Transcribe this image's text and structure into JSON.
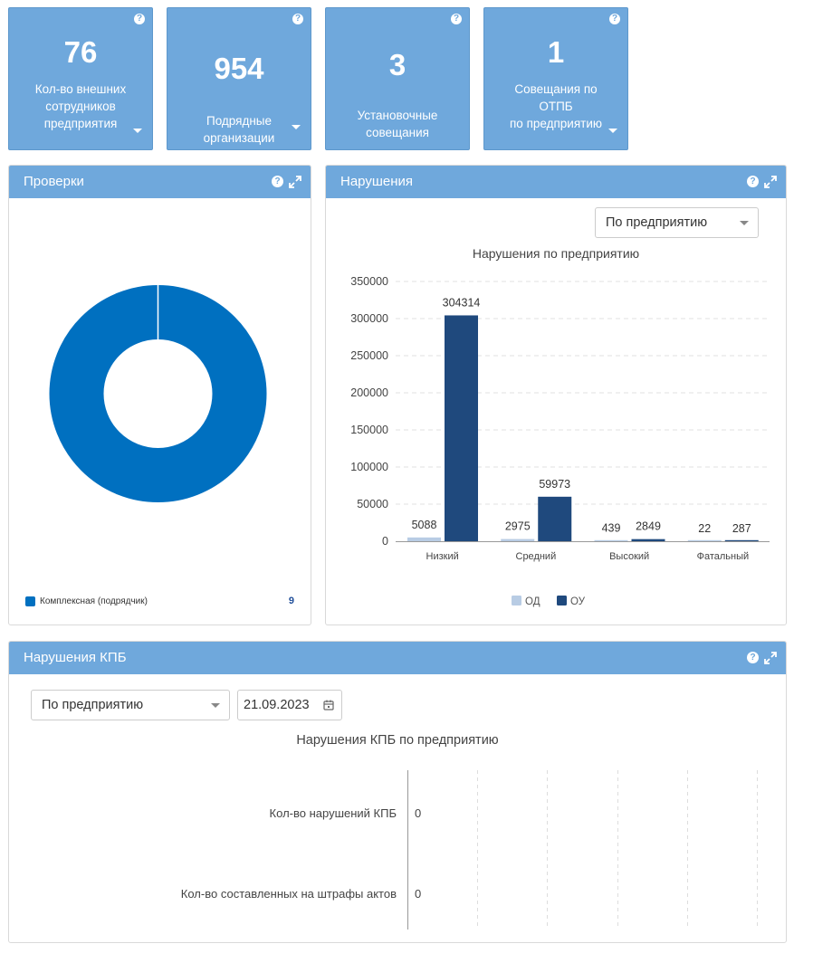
{
  "tiles": [
    {
      "number": "76",
      "label_lines": [
        "Кол-во внешних",
        "сотрудников",
        "предприятия"
      ]
    },
    {
      "number": "954",
      "label_lines": [
        "Подрядные",
        "организации"
      ]
    },
    {
      "number": "3",
      "label_lines": [
        "Установочные",
        "совещания"
      ]
    },
    {
      "number": "1",
      "label_lines": [
        "Совещания по",
        "ОТПБ",
        "по предприятию"
      ]
    }
  ],
  "help_glyph": "?",
  "inspections": {
    "title": "Проверки",
    "legend_label": "Комплексная (подрядчик)",
    "legend_value": "9",
    "color": "#0070c0"
  },
  "violations": {
    "title": "Нарушения",
    "filter_value": "По предприятию"
  },
  "kpb": {
    "title": "Нарушения КПБ",
    "filter_value": "По предприятию",
    "date_value": "21.09.2023",
    "chart_title": "Нарушения КПБ по предприятию",
    "rows": [
      {
        "label": "Кол-во нарушений КПБ",
        "value": "0"
      },
      {
        "label": "Кол-во составленных на штрафы актов",
        "value": "0"
      }
    ]
  },
  "chart_data": {
    "type": "bar",
    "title": "Нарушения по предприятию",
    "categories": [
      "Низкий",
      "Средний",
      "Высокий",
      "Фатальный"
    ],
    "series": [
      {
        "name": "ОД",
        "values": [
          5088,
          2975,
          439,
          22
        ],
        "color": "#b8cce4"
      },
      {
        "name": "ОУ",
        "values": [
          304314,
          59973,
          2849,
          287
        ],
        "color": "#1f497d"
      }
    ],
    "yticks": [
      "0",
      "50000",
      "100000",
      "150000",
      "200000",
      "250000",
      "300000",
      "350000"
    ],
    "ylim": [
      0,
      350000
    ],
    "legend_position": "bottom",
    "grid": true
  }
}
